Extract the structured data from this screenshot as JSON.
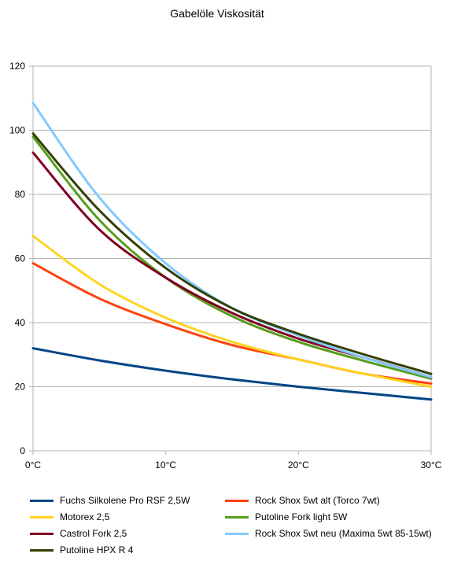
{
  "chart_data": {
    "type": "line",
    "title": "Gabelöle Viskosität",
    "xlabel": "",
    "ylabel": "",
    "x": [
      0,
      10,
      20,
      30
    ],
    "x_tick_labels": [
      "0°C",
      "10°C",
      "20°C",
      "30°C"
    ],
    "xlim": [
      0,
      30
    ],
    "ylim": [
      0,
      120
    ],
    "y_ticks": [
      0,
      20,
      40,
      60,
      80,
      100,
      120
    ],
    "grid": "horizontal",
    "legend_position": "bottom",
    "series": [
      {
        "name": "Fuchs Silkolene Pro RSF 2,5W",
        "color": "#004586",
        "points": [
          [
            0,
            32
          ],
          [
            5,
            28.2
          ],
          [
            10,
            25
          ],
          [
            15,
            22.3
          ],
          [
            20,
            20
          ],
          [
            25,
            18
          ],
          [
            30,
            16
          ]
        ]
      },
      {
        "name": "Rock Shox 5wt alt (Torco 7wt)",
        "color": "#ff420e",
        "points": [
          [
            0,
            58.5
          ],
          [
            5,
            47.5
          ],
          [
            10,
            39.5
          ],
          [
            15,
            33
          ],
          [
            20,
            28.5
          ],
          [
            25,
            24
          ],
          [
            30,
            21
          ]
        ]
      },
      {
        "name": "Motorex 2,5",
        "color": "#ffd320",
        "points": [
          [
            0,
            67
          ],
          [
            5,
            52
          ],
          [
            10,
            41.5
          ],
          [
            15,
            34
          ],
          [
            20,
            28.5
          ],
          [
            25,
            24
          ],
          [
            30,
            20
          ]
        ]
      },
      {
        "name": "Putoline Fork light 5W",
        "color": "#579d1c",
        "points": [
          [
            0,
            98
          ],
          [
            5,
            72
          ],
          [
            10,
            54
          ],
          [
            15,
            42
          ],
          [
            20,
            34
          ],
          [
            25,
            28
          ],
          [
            30,
            22.5
          ]
        ]
      },
      {
        "name": "Castrol Fork 2,5",
        "color": "#7e0021",
        "points": [
          [
            0,
            93
          ],
          [
            5,
            69
          ],
          [
            10,
            54
          ],
          [
            15,
            43
          ],
          [
            20,
            35
          ],
          [
            25,
            29
          ],
          [
            30,
            23
          ]
        ]
      },
      {
        "name": "Rock Shox 5wt neu (Maxima 5wt 85-15wt)",
        "color": "#83caff",
        "points": [
          [
            0,
            108.5
          ],
          [
            5,
            79
          ],
          [
            10,
            58.5
          ],
          [
            15,
            44.5
          ],
          [
            20,
            36
          ],
          [
            25,
            29
          ],
          [
            30,
            23
          ]
        ]
      },
      {
        "name": "Putoline HPX R 4",
        "color": "#314004",
        "points": [
          [
            0,
            99
          ],
          [
            5,
            75
          ],
          [
            10,
            57
          ],
          [
            15,
            44.5
          ],
          [
            20,
            36.5
          ],
          [
            25,
            30
          ],
          [
            30,
            24
          ]
        ]
      }
    ]
  }
}
